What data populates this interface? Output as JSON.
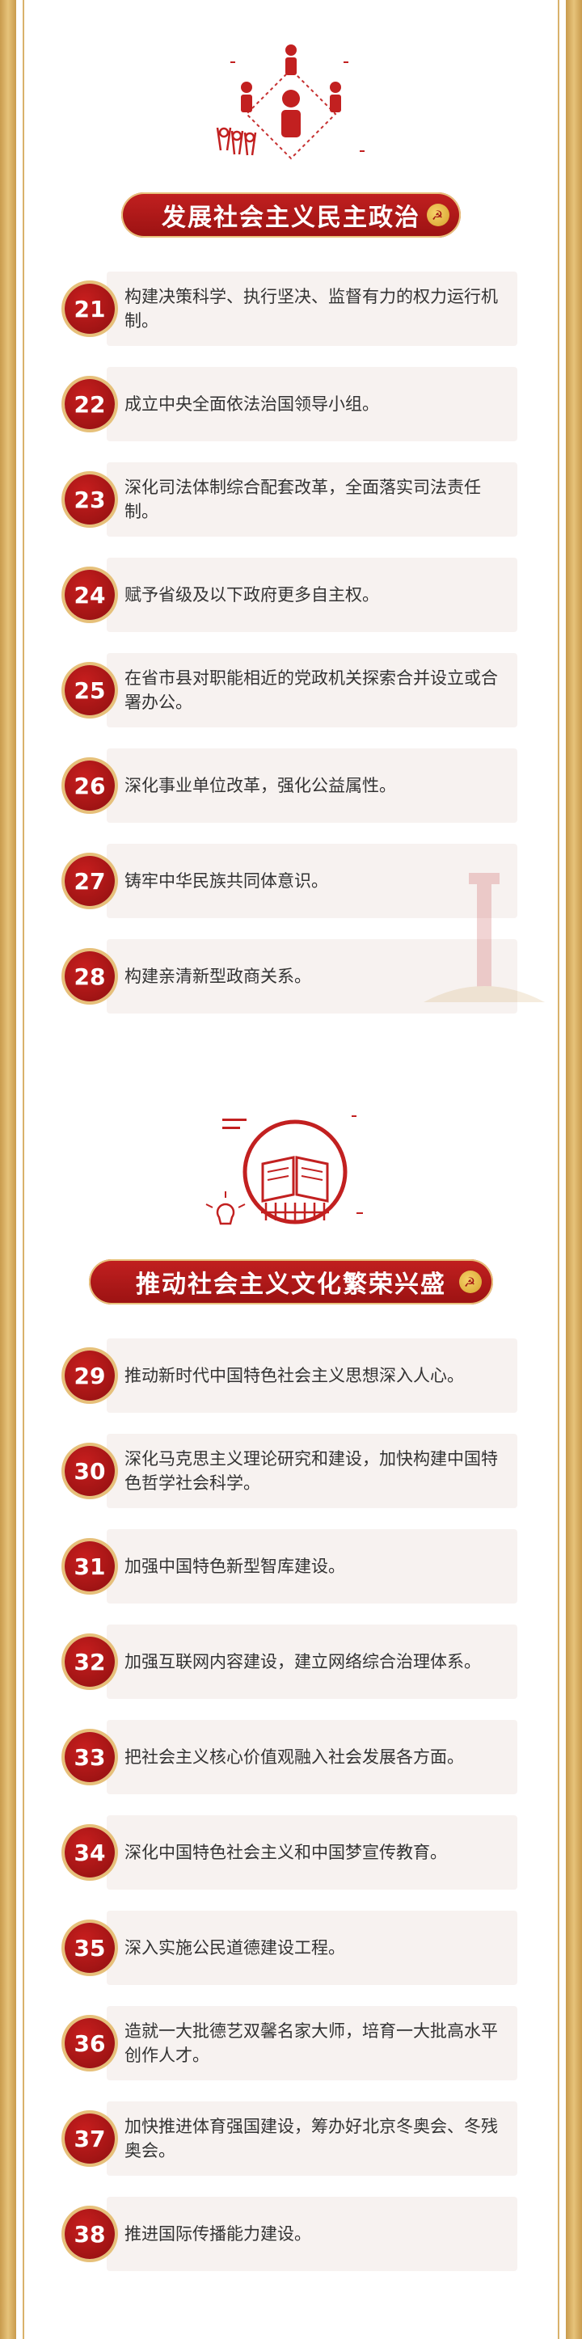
{
  "sections": [
    {
      "title": "发展社会主义民主政治",
      "icon": "people-group-icon",
      "items": [
        {
          "num": "21",
          "text": "构建决策科学、执行坚决、监督有力的权力运行机制。"
        },
        {
          "num": "22",
          "text": "成立中央全面依法治国领导小组。"
        },
        {
          "num": "23",
          "text": "深化司法体制综合配套改革，全面落实司法责任制。"
        },
        {
          "num": "24",
          "text": "赋予省级及以下政府更多自主权。"
        },
        {
          "num": "25",
          "text": "在省市县对职能相近的党政机关探索合并设立或合署办公。"
        },
        {
          "num": "26",
          "text": "深化事业单位改革，强化公益属性。"
        },
        {
          "num": "27",
          "text": "铸牢中华民族共同体意识。"
        },
        {
          "num": "28",
          "text": "构建亲清新型政商关系。"
        }
      ]
    },
    {
      "title": "推动社会主义文化繁荣兴盛",
      "icon": "book-culture-icon",
      "items": [
        {
          "num": "29",
          "text": "推动新时代中国特色社会主义思想深入人心。"
        },
        {
          "num": "30",
          "text": "深化马克思主义理论研究和建设，加快构建中国特色哲学社会科学。"
        },
        {
          "num": "31",
          "text": "加强中国特色新型智库建设。"
        },
        {
          "num": "32",
          "text": "加强互联网内容建设，建立网络综合治理体系。"
        },
        {
          "num": "33",
          "text": "把社会主义核心价值观融入社会发展各方面。"
        },
        {
          "num": "34",
          "text": "深化中国特色社会主义和中国梦宣传教育。"
        },
        {
          "num": "35",
          "text": "深入实施公民道德建设工程。"
        },
        {
          "num": "36",
          "text": "造就一大批德艺双馨名家大师，培育一大批高水平创作人才。"
        },
        {
          "num": "37",
          "text": "加快推进体育强国建设，筹办好北京冬奥会、冬残奥会。"
        },
        {
          "num": "38",
          "text": "推进国际传播能力建设。"
        }
      ]
    }
  ],
  "colors": {
    "red": "#b71818",
    "gold": "#d9b26b",
    "card": "#f7f2f0"
  }
}
